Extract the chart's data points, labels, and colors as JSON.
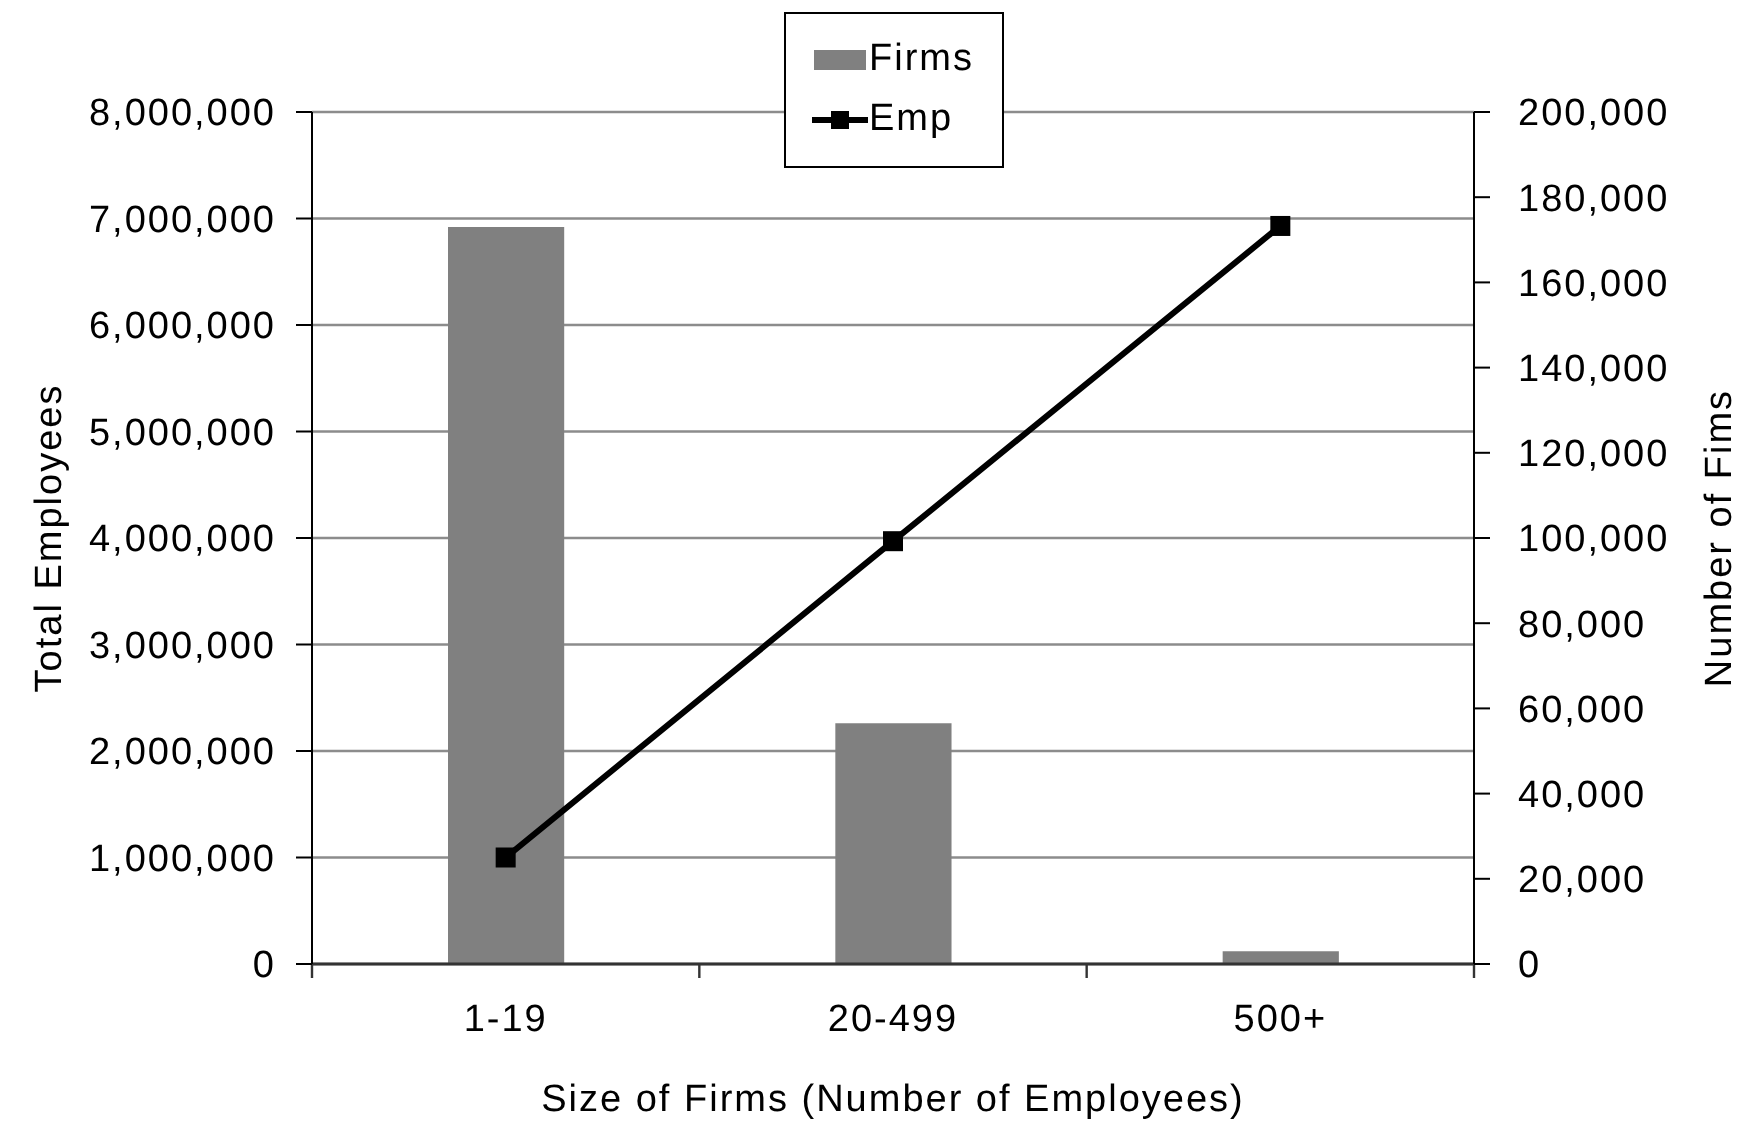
{
  "chart_data": {
    "type": "bar",
    "xlabel": "Size of Firms (Number of Employees)",
    "ylabel": "Total Employees",
    "y2label": "Number of Fims",
    "categories": [
      "1-19",
      "20-499",
      "500+"
    ],
    "series": [
      {
        "name": "Firms",
        "axis": "y2",
        "color": "#808080",
        "values": [
          173000,
          56500,
          3000
        ]
      },
      {
        "name": "Emp",
        "type": "line",
        "color": "#000000",
        "values": [
          1000000,
          3970000,
          6930000
        ]
      }
    ],
    "ylim": [
      0,
      8000000
    ],
    "yticks": [
      0,
      {
        "value": 1000000,
        "label": "1,000,000"
      },
      {
        "value": 2000000,
        "label": "2,000,000"
      },
      {
        "value": 3000000,
        "label": "3,000,000"
      },
      {
        "value": 4000000,
        "label": "4,000,000"
      },
      {
        "value": 5000000,
        "label": "5,000,000"
      },
      {
        "value": 6000000,
        "label": "6,000,000"
      },
      {
        "value": 7000000,
        "label": "7,000,000"
      },
      {
        "value": 8000000,
        "label": "8,000,000"
      }
    ],
    "y2lim": [
      0,
      200000
    ],
    "y2ticks": [
      0,
      {
        "value": 20000,
        "label": "20,000"
      },
      {
        "value": 40000,
        "label": "40,000"
      },
      {
        "value": 60000,
        "label": "60,000"
      },
      {
        "value": 80000,
        "label": "80,000"
      },
      {
        "value": 100000,
        "label": "100,000"
      },
      {
        "value": 120000,
        "label": "120,000"
      },
      {
        "value": 140000,
        "label": "140,000"
      },
      {
        "value": 160000,
        "label": "160,000"
      },
      {
        "value": 180000,
        "label": "180,000"
      },
      {
        "value": 200000,
        "label": "200,000"
      }
    ],
    "grid": "y",
    "legend": "top",
    "marker": "square",
    "line_style": "solid"
  }
}
